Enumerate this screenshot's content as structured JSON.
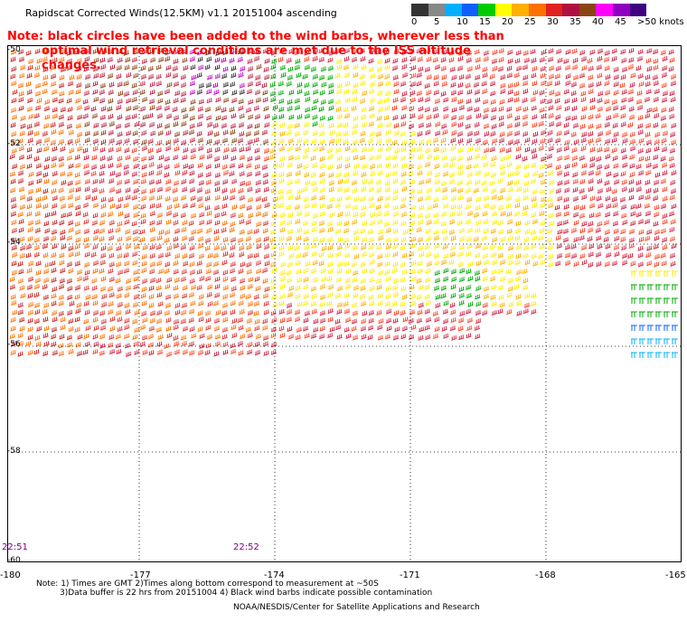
{
  "header": {
    "title": "Rapidscat Corrected Winds(12.5KM) v1.1 20151004 ascending",
    "note_line1": "Note: black circles have been added to the wind barbs, wherever less than",
    "note_line2": "optimal wind retrieval conditions are met due to the ISS altitude changes."
  },
  "legend": {
    "ticks": [
      "0",
      "5",
      "10",
      "15",
      "20",
      "25",
      "30",
      "35",
      "40",
      "45",
      ">50 knots"
    ],
    "colors": [
      "#333333",
      "#888888",
      "#00b0ff",
      "#1060ff",
      "#00cc00",
      "#ffff00",
      "#ffb000",
      "#ff7000",
      "#e02020",
      "#b01040",
      "#8b4513",
      "#ff00ff",
      "#9000c0",
      "#400080"
    ]
  },
  "axes": {
    "y_labels": [
      "-50",
      "-52",
      "-54",
      "-56",
      "-58",
      "-60"
    ],
    "x_labels": [
      "-180",
      "-177",
      "-174",
      "-171",
      "-168",
      "-165"
    ]
  },
  "times": {
    "left": "22:51",
    "right": "22:52"
  },
  "footnotes": {
    "line1": "Note: 1) Times are GMT 2)Times along bottom correspond to measurement at ~50S",
    "line2": "3)Data buffer is 22 hrs from 20151004 4) Black wind barbs indicate possible contamination",
    "credit": "NOAA/NESDIS/Center for Satellite Applications and Research"
  }
}
